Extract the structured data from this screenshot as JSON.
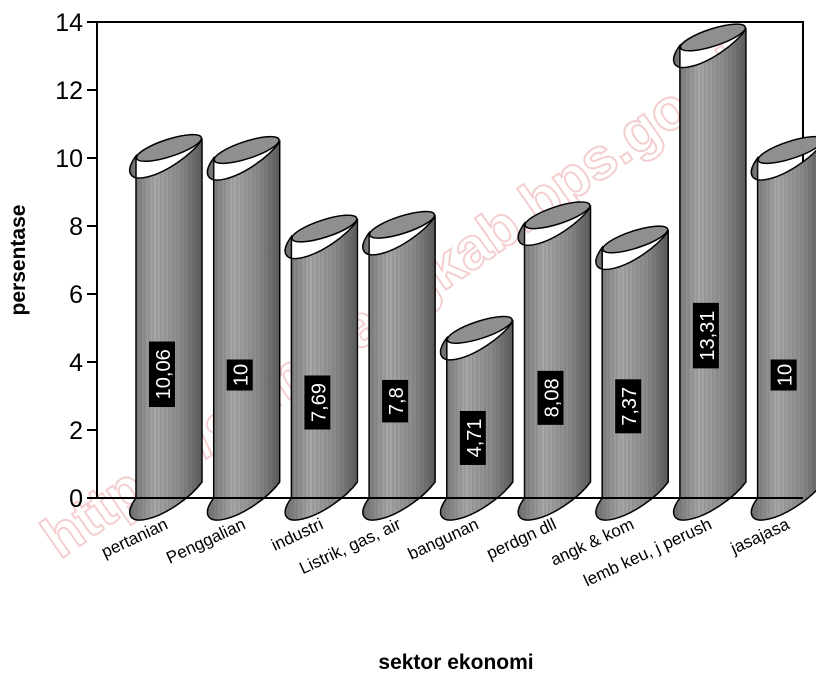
{
  "chart_data": {
    "type": "bar",
    "categories": [
      "pertanian",
      "Penggalian",
      "industri",
      "Listrik, gas, air",
      "bangunan",
      "perdgn dll",
      "angk & kom",
      "lemb keu, j perush",
      "jasajasa"
    ],
    "values": [
      10.06,
      10,
      7.69,
      7.8,
      4.71,
      8.08,
      7.37,
      13.31,
      10
    ],
    "data_labels": [
      "10,06",
      "10",
      "7,69",
      "7,8",
      "4,71",
      "8,08",
      "7,37",
      "13,31",
      "10"
    ],
    "title": "",
    "xlabel": "sektor ekonomi",
    "ylabel": "persentase",
    "ylim": [
      0,
      14
    ],
    "yticks": [
      0,
      2,
      4,
      6,
      8,
      10,
      12,
      14
    ],
    "ytick_labels": [
      "0",
      "2",
      "4",
      "6",
      "8",
      "10",
      "12",
      "14"
    ],
    "grid": false,
    "legend": "none",
    "bar_style": "3d cylinder",
    "bar_color": "#8c8c8c"
  },
  "watermark": "https://semarangkab.bps.go.id"
}
